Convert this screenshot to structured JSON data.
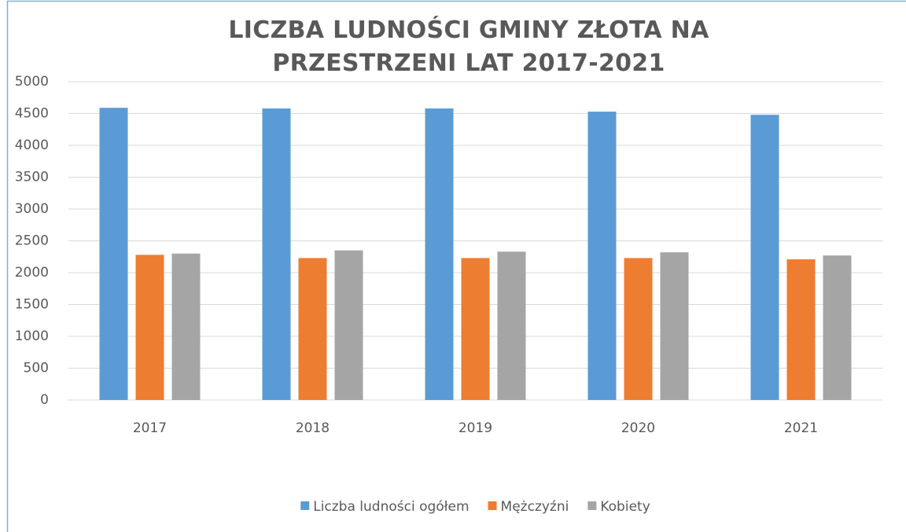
{
  "chart_data": {
    "type": "bar",
    "title": "LICZBA LUDNOŚCI GMINY ZŁOTA NA PRZESTRZENI LAT 2017-2021",
    "categories": [
      "2017",
      "2018",
      "2019",
      "2020",
      "2021"
    ],
    "series": [
      {
        "name": "Liczba ludności ogółem",
        "color": "#5b9bd5",
        "values": [
          4590,
          4580,
          4580,
          4530,
          4480
        ]
      },
      {
        "name": "Mężczyźni",
        "color": "#ed7d31",
        "values": [
          2280,
          2230,
          2230,
          2230,
          2210
        ]
      },
      {
        "name": "Kobiety",
        "color": "#a5a5a5",
        "values": [
          2300,
          2350,
          2330,
          2320,
          2270
        ]
      }
    ],
    "ylim": [
      0,
      5000
    ],
    "yticks": [
      0,
      500,
      1000,
      1500,
      2000,
      2500,
      3000,
      3500,
      4000,
      4500,
      5000
    ],
    "grid": true,
    "legend": "bottom"
  }
}
